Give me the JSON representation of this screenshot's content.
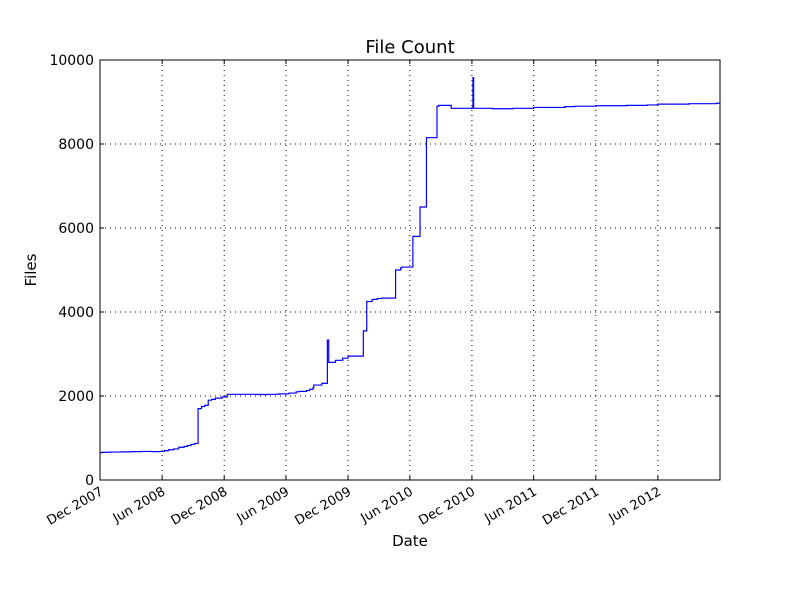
{
  "chart_data": {
    "type": "line",
    "title": "File Count",
    "xlabel": "Date",
    "ylabel": "Files",
    "xlim": [
      "2007-12-01",
      "2012-12-01"
    ],
    "ylim": [
      0,
      10000
    ],
    "grid": true,
    "legend": "none",
    "line_color": "#0000ff",
    "xticks": [
      {
        "date": "2007-12-01",
        "label": "Dec 2007"
      },
      {
        "date": "2008-06-01",
        "label": "Jun 2008"
      },
      {
        "date": "2008-12-01",
        "label": "Dec 2008"
      },
      {
        "date": "2009-06-01",
        "label": "Jun 2009"
      },
      {
        "date": "2009-12-01",
        "label": "Dec 2009"
      },
      {
        "date": "2010-06-01",
        "label": "Jun 2010"
      },
      {
        "date": "2010-12-01",
        "label": "Dec 2010"
      },
      {
        "date": "2011-06-01",
        "label": "Jun 2011"
      },
      {
        "date": "2011-12-01",
        "label": "Dec 2011"
      },
      {
        "date": "2012-06-01",
        "label": "Jun 2012"
      }
    ],
    "yticks": [
      {
        "value": 0,
        "label": "0"
      },
      {
        "value": 2000,
        "label": "2000"
      },
      {
        "value": 4000,
        "label": "4000"
      },
      {
        "value": 6000,
        "label": "6000"
      },
      {
        "value": 8000,
        "label": "8000"
      },
      {
        "value": 10000,
        "label": "10000"
      }
    ],
    "series": [
      {
        "x": [
          "2007-12-01",
          "2007-12-08",
          "2008-01-01",
          "2008-02-01",
          "2008-03-01",
          "2008-04-01",
          "2008-05-01",
          "2008-05-25",
          "2008-06-08",
          "2008-06-20",
          "2008-07-05",
          "2008-07-20",
          "2008-08-05",
          "2008-08-15",
          "2008-08-25",
          "2008-09-05",
          "2008-09-15",
          "2008-09-25",
          "2008-10-05",
          "2008-10-15",
          "2008-10-25",
          "2008-11-05",
          "2008-11-25",
          "2008-12-10",
          "2009-01-10",
          "2009-02-10",
          "2009-03-10",
          "2009-04-10",
          "2009-05-10",
          "2009-06-10",
          "2009-07-01",
          "2009-07-10",
          "2009-08-01",
          "2009-08-10",
          "2009-08-14",
          "2009-08-20",
          "2009-08-22",
          "2009-09-01",
          "2009-09-15",
          "2009-10-01",
          "2009-10-05",
          "2009-10-25",
          "2009-11-15",
          "2009-12-01",
          "2009-12-25",
          "2010-01-10",
          "2010-01-12",
          "2010-01-15",
          "2010-01-25",
          "2010-02-10",
          "2010-02-25",
          "2010-03-10",
          "2010-03-12",
          "2010-04-01",
          "2010-04-20",
          "2010-05-05",
          "2010-05-08",
          "2010-05-25",
          "2010-05-27",
          "2010-06-10",
          "2010-06-12",
          "2010-07-01",
          "2010-07-03",
          "2010-07-20",
          "2010-07-22",
          "2010-08-20",
          "2010-08-25",
          "2010-10-01",
          "2010-12-01",
          "2010-12-04",
          "2010-12-06",
          "2011-02-01",
          "2011-04-01",
          "2011-05-01",
          "2011-06-01",
          "2011-09-01",
          "2011-10-01",
          "2011-12-01",
          "2012-03-01",
          "2012-05-01",
          "2012-06-01",
          "2012-09-01",
          "2012-11-20",
          "2012-12-01"
        ],
        "y": [
          650,
          660,
          665,
          670,
          675,
          680,
          675,
          680,
          700,
          720,
          740,
          780,
          800,
          820,
          850,
          870,
          1700,
          1750,
          1780,
          1900,
          1920,
          1950,
          1980,
          2040,
          2040,
          2040,
          2035,
          2040,
          2050,
          2070,
          2100,
          2110,
          2130,
          2160,
          2160,
          2200,
          2260,
          2260,
          2300,
          3330,
          2800,
          2850,
          2900,
          2950,
          2950,
          2950,
          2950,
          3550,
          4250,
          4300,
          4320,
          4330,
          4330,
          4330,
          5000,
          5050,
          5070,
          5070,
          5070,
          5800,
          5800,
          6500,
          6500,
          8150,
          8150,
          8900,
          8920,
          8850,
          8860,
          9580,
          8850,
          8840,
          8850,
          8850,
          8870,
          8890,
          8900,
          8910,
          8920,
          8930,
          8950,
          8960,
          8970,
          8960
        ]
      }
    ]
  }
}
